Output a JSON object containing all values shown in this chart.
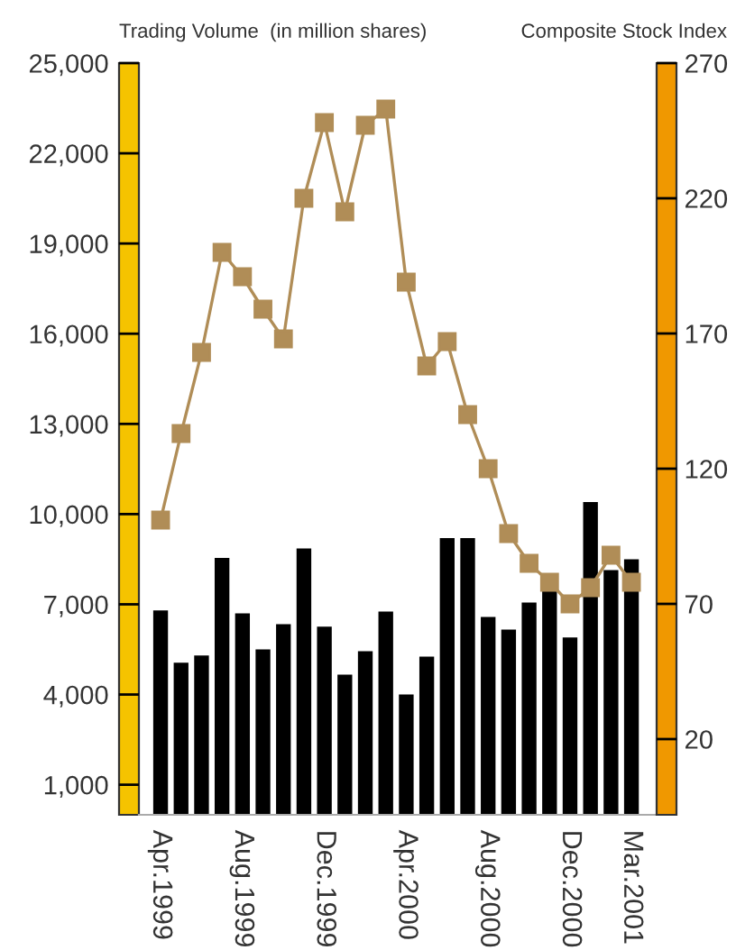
{
  "chart_data": {
    "type": "bar",
    "ylabel": "Trading Volume  (in million shares)",
    "y2label": "Composite Stock Index",
    "categories": [
      "Apr.1999",
      null,
      null,
      null,
      "Aug.1999",
      null,
      null,
      null,
      "Dec.1999",
      null,
      null,
      null,
      "Apr.2000",
      null,
      null,
      null,
      "Aug.2000",
      null,
      null,
      null,
      "Dec.2000",
      null,
      null,
      "Mar.2001"
    ],
    "series": [
      {
        "color": "#000000",
        "values": [
          6800,
          5060,
          5300,
          8540,
          6700,
          5500,
          6340,
          8860,
          6260,
          4660,
          5440,
          6760,
          4000,
          5260,
          9200,
          9200,
          6580,
          6160,
          7060,
          7440,
          5900,
          10400,
          8140,
          8500
        ]
      },
      {
        "type": "line",
        "axis": "y2",
        "color": "#b08d57",
        "marker": "square",
        "values": [
          101,
          133,
          163,
          200,
          191,
          179,
          168,
          220,
          248,
          215,
          247,
          253,
          189,
          158,
          167,
          140,
          120,
          96,
          85,
          78,
          70,
          76,
          88,
          78
        ]
      }
    ],
    "ylim": [
      0,
      25000
    ],
    "yticks": [
      {
        "value": 1000,
        "label": "1,000"
      },
      {
        "value": 4000,
        "label": "4,000"
      },
      {
        "value": 7000,
        "label": "7,000"
      },
      {
        "value": 10000,
        "label": "10,000"
      },
      {
        "value": 13000,
        "label": "13,000"
      },
      {
        "value": 16000,
        "label": "16,000"
      },
      {
        "value": 19000,
        "label": "19,000"
      },
      {
        "value": 22000,
        "label": "22,000"
      },
      {
        "value": 25000,
        "label": "25,000"
      }
    ],
    "y2lim": [
      -8,
      270
    ],
    "y2ticks": [
      20,
      70,
      120,
      170,
      220,
      270
    ],
    "grid": false,
    "legend": false
  }
}
